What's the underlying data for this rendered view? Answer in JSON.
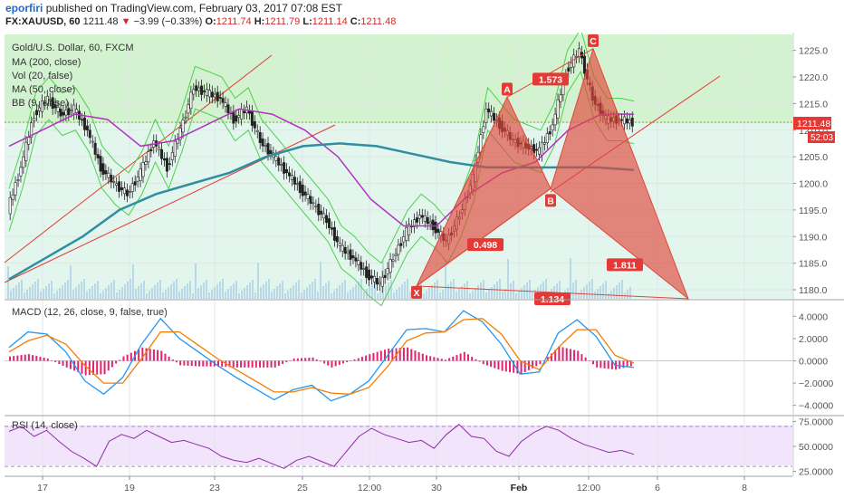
{
  "header": {
    "author": "eporfiri",
    "published_text": "published on TradingView.com, February 03, 2017 07:08 EST",
    "symbol": "FX:XAUUSD, 60",
    "last": "1211.48",
    "change_arrow": "▼",
    "change": "−3.99 (−0.33%)",
    "o_label": "O:",
    "o_value": "1211.74",
    "h_label": "H:",
    "h_value": "1211.79",
    "l_label": "L:",
    "l_value": "1211.14",
    "c_label": "C:",
    "c_value": "1211.48"
  },
  "legend": {
    "title": "Gold/U.S. Dollar, 60, FXCM",
    "items": [
      "MA (200, close)",
      "Vol (20, false)",
      "MA (50, close)",
      "BB (9, close)"
    ]
  },
  "price_badge": {
    "price": "1211.48",
    "countdown": "52:03"
  },
  "pattern_labels": {
    "x": "X",
    "a": "A",
    "b": "B",
    "c": "C",
    "r_xab": "0.498",
    "r_abc": "1.573",
    "r_bcd": "1.811",
    "r_xd": "1.134"
  },
  "macd_legend": "MACD (12, 26, close, 9, false, true)",
  "rsi_legend": "RSI (14, close)",
  "colors": {
    "up_zone": "#d3f2cf",
    "down_zone": "#e3f6ee",
    "pattern": "#e0463a",
    "ma200": "#2f8fa0",
    "ma50": "#b230c2",
    "bb": "#4cd24c",
    "macd": "#2196f3",
    "signal": "#f57c00",
    "hist": "#e0246e",
    "rsi": "#8e2ea6"
  },
  "chart_data": [
    {
      "type": "line",
      "title": "Gold/U.S. Dollar, 60, FXCM",
      "x_ticks": [
        "17",
        "19",
        "23",
        "25",
        "12:00",
        "30",
        "Feb",
        "12:00",
        "6",
        "8"
      ],
      "y_ticks": [
        1180.0,
        1185.0,
        1190.0,
        1195.0,
        1200.0,
        1205.0,
        1210.0,
        1215.0,
        1220.0,
        1225.0
      ],
      "ylim": [
        1178.3,
        1228.0
      ],
      "price_path": [
        1195,
        1203,
        1213,
        1216,
        1213,
        1214,
        1210,
        1203,
        1200,
        1198,
        1202,
        1208,
        1203,
        1210,
        1218,
        1217,
        1216,
        1212,
        1214,
        1208,
        1205,
        1202,
        1199,
        1196,
        1193,
        1188,
        1186,
        1183,
        1181,
        1186,
        1191,
        1194,
        1192,
        1189,
        1194,
        1201,
        1214,
        1211,
        1208,
        1207,
        1206,
        1211,
        1221,
        1225,
        1216,
        1212,
        1212,
        1211.48
      ],
      "ma200_path": [
        1182,
        1186,
        1190,
        1195,
        1198,
        1200,
        1202,
        1205,
        1207,
        1207.5,
        1207,
        1205.5,
        1204,
        1203,
        1203,
        1203,
        1203,
        1202.5
      ],
      "ma50_path": [
        1207,
        1210,
        1213,
        1212,
        1207,
        1208,
        1211,
        1214,
        1213,
        1210,
        1205,
        1197,
        1192,
        1192,
        1198,
        1202,
        1204,
        1210,
        1213,
        1213
      ],
      "harmonic_pattern": {
        "X": 1180.7,
        "A": 1216.2,
        "B": 1199.0,
        "C": 1225.3,
        "D": 1178.3,
        "ratios": {
          "XAB": 0.498,
          "ABC": 1.573,
          "BCD": 1.811,
          "XD": 1.134
        }
      },
      "last_price": 1211.48
    },
    {
      "type": "line",
      "title": "MACD (12, 26, close, 9, false, true)",
      "y_ticks": [
        4.0,
        2.0,
        0.0,
        -2.0,
        -4.0
      ],
      "ylim": [
        -4.6,
        4.6
      ],
      "macd_path": [
        1.2,
        2.6,
        2.4,
        0.8,
        -1.8,
        -3.0,
        -1.5,
        1.5,
        3.8,
        2.0,
        0.8,
        -0.4,
        -1.5,
        -2.5,
        -3.5,
        -2.6,
        -2.2,
        -3.6,
        -3.0,
        -1.8,
        0.5,
        2.8,
        2.9,
        2.6,
        4.5,
        3.5,
        1.5,
        -1.2,
        -1.0,
        2.5,
        3.7,
        2.2,
        -0.4,
        -0.6
      ],
      "signal_path": [
        0.8,
        1.8,
        2.3,
        1.5,
        -0.4,
        -2.0,
        -2.0,
        0.2,
        2.6,
        2.6,
        1.4,
        0.2,
        -0.8,
        -1.8,
        -2.8,
        -2.8,
        -2.4,
        -2.9,
        -3.0,
        -2.4,
        -0.5,
        1.8,
        2.5,
        2.6,
        3.7,
        3.8,
        2.4,
        0.0,
        -0.8,
        1.2,
        2.8,
        2.8,
        0.5,
        -0.2
      ],
      "histogram_path": [
        0.4,
        0.6,
        0.2,
        -0.6,
        -1.3,
        -1.2,
        0.4,
        1.2,
        0.9,
        -0.4,
        -0.5,
        -0.5,
        -0.6,
        -0.6,
        -0.6,
        0.2,
        0.3,
        -0.6,
        0.0,
        0.6,
        1.1,
        1.2,
        0.5,
        0.1,
        0.8,
        -0.3,
        -0.9,
        -1.2,
        -0.3,
        1.3,
        0.9,
        -0.6,
        -0.8,
        -0.4
      ]
    },
    {
      "type": "line",
      "title": "RSI (14, close)",
      "y_ticks": [
        75.0,
        50.0,
        25.0
      ],
      "ylim": [
        21.0,
        79.0
      ],
      "bands": [
        70,
        30
      ],
      "rsi_path": [
        65,
        70,
        60,
        66,
        55,
        45,
        38,
        30,
        55,
        62,
        58,
        66,
        60,
        54,
        56,
        52,
        48,
        40,
        36,
        34,
        38,
        33,
        28,
        36,
        40,
        35,
        30,
        45,
        60,
        68,
        62,
        58,
        54,
        56,
        48,
        62,
        72,
        60,
        58,
        45,
        40,
        55,
        64,
        70,
        66,
        58,
        52,
        48,
        44,
        46,
        42
      ]
    }
  ]
}
